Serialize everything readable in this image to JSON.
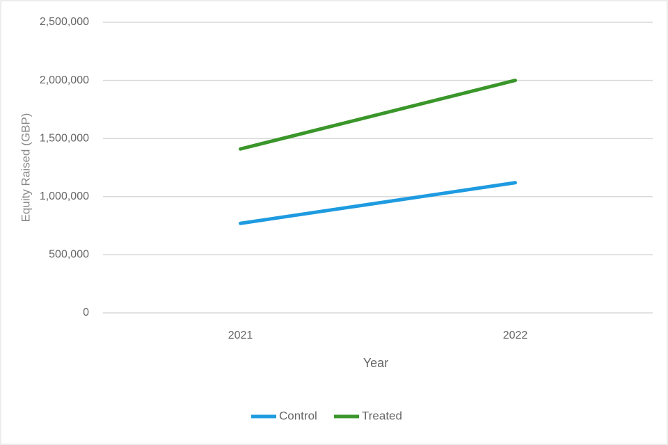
{
  "chart_data": {
    "type": "line",
    "x_label": "Year",
    "y_label": "Equity Raised (GBP)",
    "categories": [
      "2021",
      "2022"
    ],
    "series": [
      {
        "name": "Control",
        "color": "#1e9be0",
        "values": [
          770000,
          1120000
        ]
      },
      {
        "name": "Treated",
        "color": "#3a962a",
        "values": [
          1410000,
          2000000
        ]
      }
    ],
    "ylim": [
      0,
      2500000
    ],
    "yticks": [
      0,
      {
        "value": 500000,
        "label": "500,000"
      },
      {
        "value": 1000000,
        "label": "1,000,000"
      },
      {
        "value": 1500000,
        "label": "1,500,000"
      },
      {
        "value": 2000000,
        "label": "2,000,000"
      },
      {
        "value": 2500000,
        "label": "2,500,000"
      }
    ],
    "grid": true,
    "legend": "bottom"
  }
}
